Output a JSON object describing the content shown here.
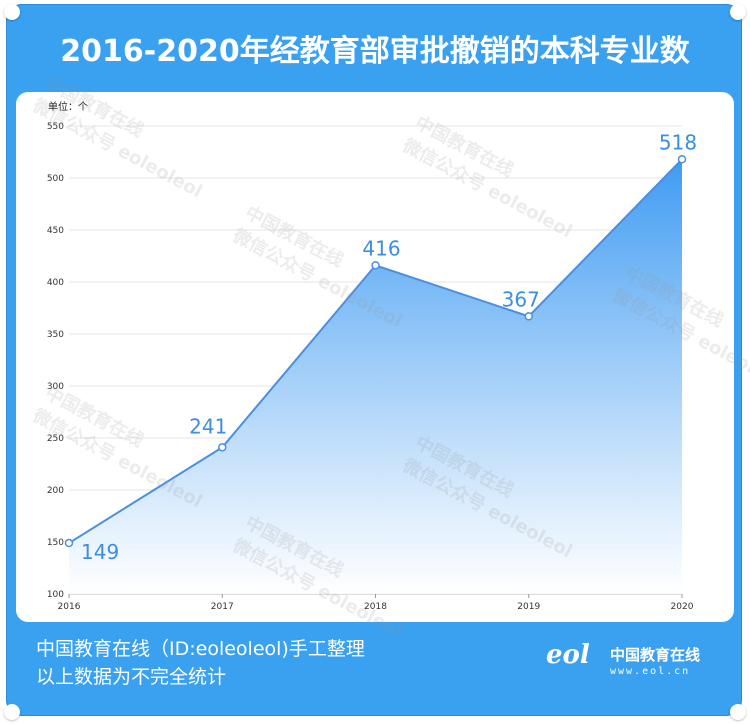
{
  "title": "2016-2020年经教育部审批撤销的本科专业数",
  "unit_label": "单位：个",
  "footer": {
    "line1": "中国教育在线（ID:eoleoleol)手工整理",
    "line2": "以上数据为不完全统计"
  },
  "logo": {
    "mark": "eol",
    "name": "中国教育在线",
    "url": "www.eol.cn"
  },
  "watermark": {
    "line1": "中国教育在线",
    "line2": "微信公众号 eoleoleol"
  },
  "colors": {
    "frame": "#3aa0f0",
    "line": "#4a8fe0",
    "label": "#3a8fe0",
    "fill_top": "#3f9bf2"
  },
  "chart_data": {
    "type": "area",
    "title": "2016-2020年经教育部审批撤销的本科专业数",
    "x": [
      "2016",
      "2017",
      "2018",
      "2019",
      "2020"
    ],
    "series": [
      {
        "values": [
          149,
          241,
          416,
          367,
          518
        ]
      }
    ],
    "ylim": [
      100,
      550
    ],
    "yticks": [
      100,
      150,
      200,
      250,
      300,
      350,
      400,
      450,
      500,
      550
    ],
    "ylabel": "单位：个",
    "xlabel": "",
    "grid": "horizontal",
    "legend": "none"
  }
}
